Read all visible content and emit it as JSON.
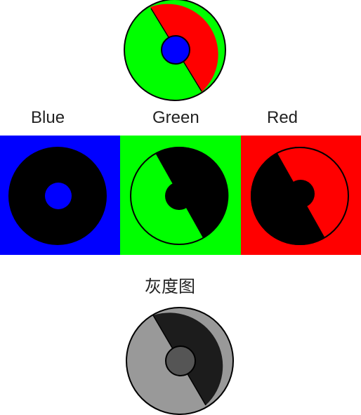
{
  "labels": {
    "blue": "Blue",
    "green": "Green",
    "red": "Red",
    "gray": "灰度图"
  },
  "colors": {
    "blue": "#0000ff",
    "green": "#00ff00",
    "red": "#ff0000",
    "black": "#000000",
    "gray_light": "#999999",
    "gray_dark": "#1c1c1c",
    "gray_center": "#555555"
  }
}
